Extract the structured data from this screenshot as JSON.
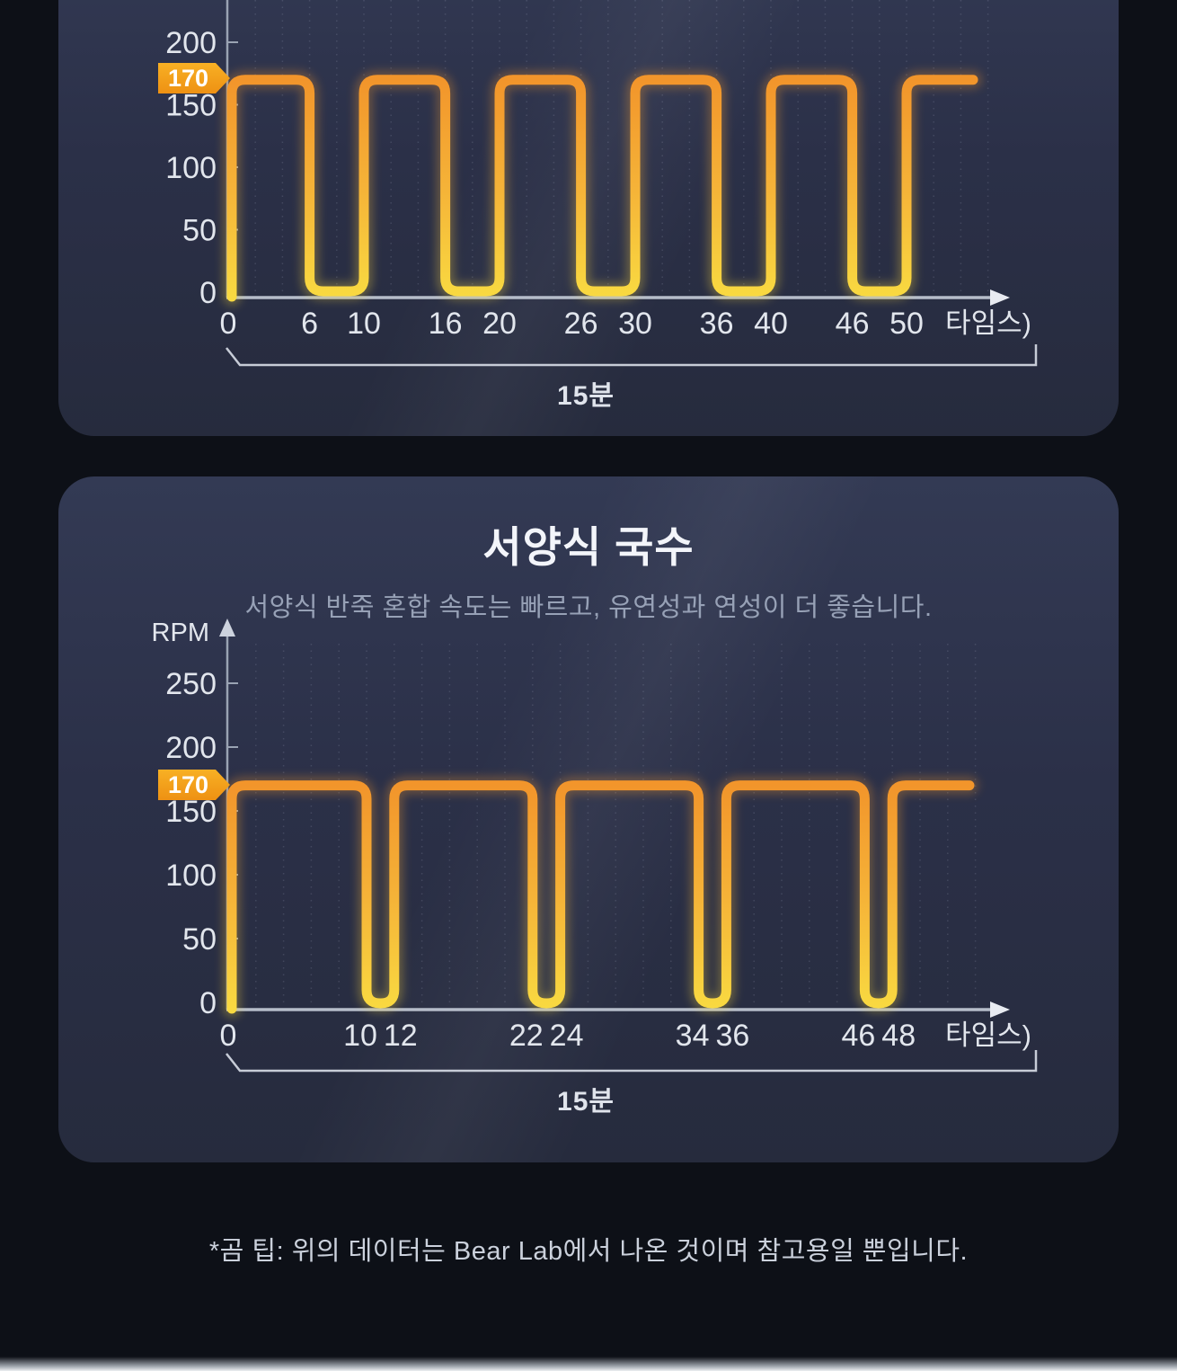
{
  "page": {
    "background": "#0d1017"
  },
  "colors": {
    "card_top": "#333a54",
    "card_bottom": "#262b3d",
    "wave_orange": "#f2952b",
    "wave_mid": "#f5b338",
    "wave_yellow": "#f9da41",
    "badge_orange": "#f5a51e",
    "axis": "#b6bdca",
    "grid": "rgba(190,200,225,0.16)",
    "text_primary": "#e2e6ed",
    "text_secondary": "#97a1b6"
  },
  "section2": {
    "title": "서양식 국수",
    "subtitle": "서양식 반죽 혼합 속도는 빠르고, 유연성과 연성이 더 좋습니다."
  },
  "footer": {
    "note": "*곰 팁: 위의 데이터는 Bear Lab에서 나온 것이며 참고용일 뿐입니다."
  },
  "chart_data": [
    {
      "type": "line",
      "subtype": "square-wave",
      "note": "top chart, partially cropped at top of screenshot",
      "xlabel": "타임스)",
      "ylabel": "",
      "y_ticks": [
        200,
        150,
        100,
        50,
        0
      ],
      "x_ticks": [
        0,
        6,
        10,
        16,
        20,
        26,
        30,
        36,
        40,
        46,
        50
      ],
      "highlight_value": 170,
      "highlight_label": "170",
      "high_rpm": 170,
      "low_rpm": 0,
      "high_intervals": [
        [
          0,
          6
        ],
        [
          10,
          16
        ],
        [
          20,
          26
        ],
        [
          30,
          36
        ],
        [
          40,
          46
        ],
        [
          50,
          55
        ]
      ],
      "low_intervals": [
        [
          6,
          10
        ],
        [
          16,
          20
        ],
        [
          26,
          30
        ],
        [
          36,
          40
        ],
        [
          46,
          50
        ]
      ],
      "x_end": 55,
      "duration_label": "15분",
      "grid": "vertical-dotted",
      "legend": "none"
    },
    {
      "type": "line",
      "subtype": "square-wave",
      "title": "서양식 국수",
      "xlabel": "타임스)",
      "ylabel": "RPM",
      "y_ticks": [
        250,
        200,
        150,
        100,
        50,
        0
      ],
      "x_ticks": [
        0,
        10,
        12,
        22,
        24,
        34,
        36,
        46,
        48
      ],
      "highlight_value": 170,
      "highlight_label": "170",
      "high_rpm": 170,
      "low_rpm": 0,
      "high_intervals": [
        [
          0,
          10
        ],
        [
          12,
          22
        ],
        [
          24,
          34
        ],
        [
          36,
          46
        ],
        [
          48,
          55
        ]
      ],
      "low_intervals": [
        [
          10,
          12
        ],
        [
          22,
          24
        ],
        [
          34,
          36
        ],
        [
          46,
          48
        ]
      ],
      "x_end": 55,
      "duration_label": "15분",
      "grid": "vertical-dotted",
      "legend": "none"
    }
  ]
}
